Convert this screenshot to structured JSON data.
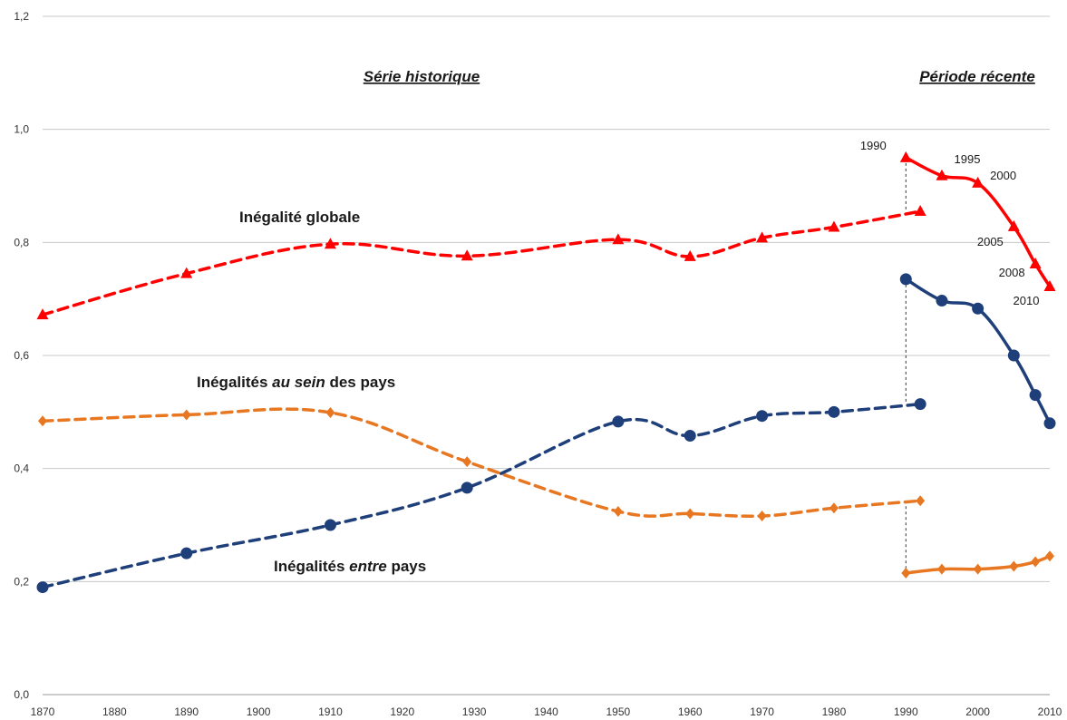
{
  "chart_data": {
    "type": "line",
    "xlim": [
      1870,
      2010
    ],
    "ylim": [
      0,
      1.2
    ],
    "x_ticks": [
      "1870",
      "1880",
      "1890",
      "1900",
      "1910",
      "1920",
      "1930",
      "1940",
      "1950",
      "1960",
      "1970",
      "1980",
      "1990",
      "2000",
      "2010"
    ],
    "y_ticks": [
      "0,0",
      "0,2",
      "0,4",
      "0,6",
      "0,8",
      "1,0",
      "1,2"
    ],
    "grid": "horizontal",
    "section_titles": {
      "historical": "Série historique",
      "recent": "Période récente"
    },
    "series_labels": {
      "global_prefix": "Inégalité globale",
      "within_prefix": "Inégalités ",
      "within_italic": "au sein",
      "within_suffix": " des pays",
      "between_prefix": "Inégalités ",
      "between_italic": "entre",
      "between_suffix": " pays"
    },
    "series": [
      {
        "key": "global_hist",
        "color": "#ff0000",
        "dashed": true,
        "marker": "triangle",
        "points": [
          [
            1870,
            0.672
          ],
          [
            1890,
            0.745
          ],
          [
            1910,
            0.797
          ],
          [
            1929,
            0.776
          ],
          [
            1950,
            0.805
          ],
          [
            1960,
            0.775
          ],
          [
            1970,
            0.808
          ],
          [
            1980,
            0.827
          ],
          [
            1992,
            0.855
          ]
        ]
      },
      {
        "key": "global_recent",
        "color": "#ff0000",
        "dashed": false,
        "marker": "triangle",
        "points": [
          [
            1990,
            0.95
          ],
          [
            1995,
            0.918
          ],
          [
            2000,
            0.905
          ],
          [
            2005,
            0.828
          ],
          [
            2008,
            0.762
          ],
          [
            2010,
            0.722
          ]
        ]
      },
      {
        "key": "within_hist",
        "color": "#e87722",
        "dashed": true,
        "marker": "diamond",
        "points": [
          [
            1870,
            0.484
          ],
          [
            1890,
            0.495
          ],
          [
            1910,
            0.499
          ],
          [
            1929,
            0.412
          ],
          [
            1950,
            0.324
          ],
          [
            1960,
            0.32
          ],
          [
            1970,
            0.316
          ],
          [
            1980,
            0.33
          ],
          [
            1992,
            0.343
          ]
        ]
      },
      {
        "key": "within_recent",
        "color": "#e87722",
        "dashed": false,
        "marker": "diamond",
        "points": [
          [
            1990,
            0.215
          ],
          [
            1995,
            0.222
          ],
          [
            2000,
            0.222
          ],
          [
            2005,
            0.227
          ],
          [
            2008,
            0.235
          ],
          [
            2010,
            0.245
          ]
        ]
      },
      {
        "key": "between_hist",
        "color": "#1f3f7a",
        "dashed": true,
        "marker": "circle",
        "points": [
          [
            1870,
            0.19
          ],
          [
            1890,
            0.25
          ],
          [
            1910,
            0.3
          ],
          [
            1929,
            0.366
          ],
          [
            1950,
            0.483
          ],
          [
            1960,
            0.458
          ],
          [
            1970,
            0.493
          ],
          [
            1980,
            0.5
          ],
          [
            1992,
            0.514
          ]
        ]
      },
      {
        "key": "between_recent",
        "color": "#1f3f7a",
        "dashed": false,
        "marker": "circle",
        "points": [
          [
            1990,
            0.735
          ],
          [
            1995,
            0.697
          ],
          [
            2000,
            0.683
          ],
          [
            2005,
            0.6
          ],
          [
            2008,
            0.53
          ],
          [
            2010,
            0.48
          ]
        ]
      }
    ],
    "year_annotations": [
      "1990",
      "1995",
      "2000",
      "2005",
      "2008",
      "2010"
    ],
    "year_annotation_points": [
      [
        1990,
        0.95
      ],
      [
        1995,
        0.918
      ],
      [
        2000,
        0.905
      ],
      [
        2005,
        0.828
      ],
      [
        2008,
        0.762
      ],
      [
        2010,
        0.722
      ]
    ],
    "connectors": [
      {
        "x": 1990,
        "from": 0.95,
        "to": 0.855
      },
      {
        "x": 1990,
        "from": 0.735,
        "to": 0.514
      },
      {
        "x": 1990,
        "from": 0.343,
        "to": 0.215
      }
    ]
  }
}
